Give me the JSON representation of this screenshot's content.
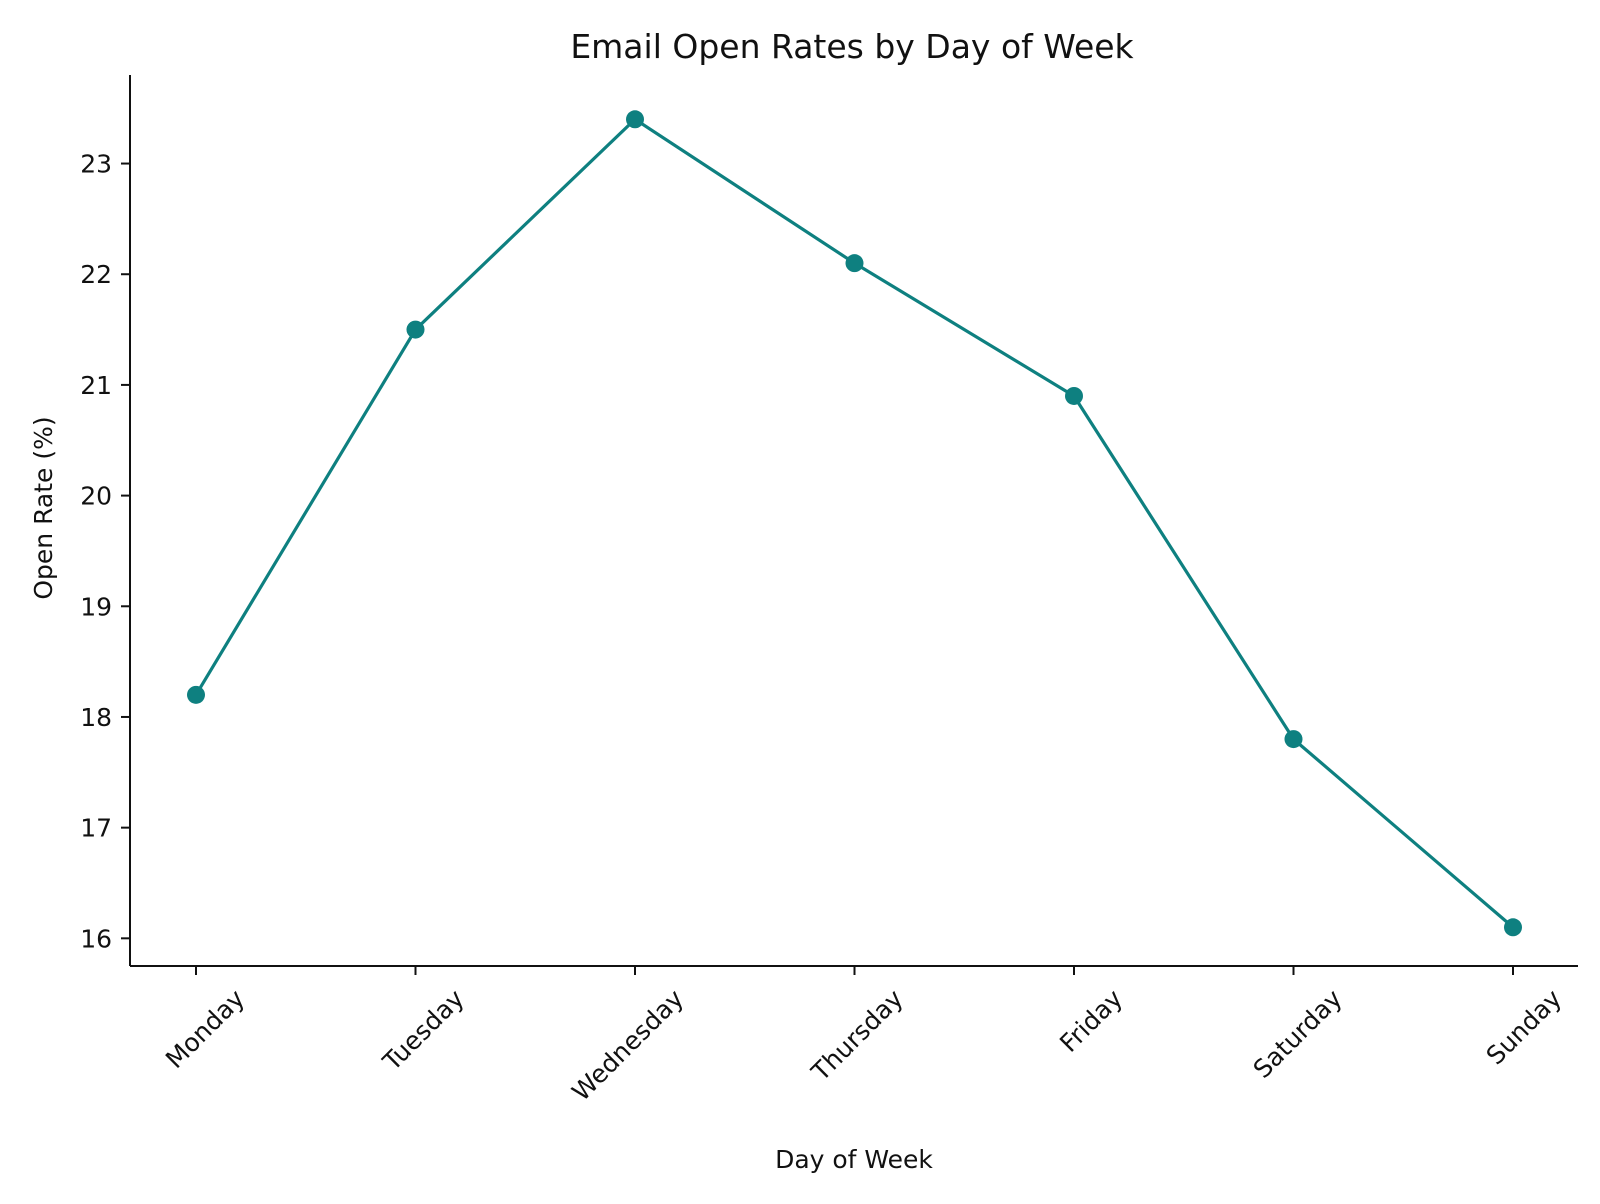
{
  "chart_data": {
    "type": "line",
    "title": "Email Open Rates by Day of Week",
    "xlabel": "Day of Week",
    "ylabel": "Open Rate (%)",
    "categories": [
      "Monday",
      "Tuesday",
      "Wednesday",
      "Thursday",
      "Friday",
      "Saturday",
      "Sunday"
    ],
    "series": [
      {
        "values": [
          18.2,
          21.5,
          23.4,
          22.1,
          20.9,
          17.8,
          16.1
        ],
        "color": "#0e8080",
        "marker": "circle"
      }
    ],
    "yticks": [
      "16",
      "17",
      "18",
      "19",
      "20",
      "21",
      "22",
      "23"
    ],
    "ylim": [
      15.75,
      23.8
    ],
    "grid": false,
    "legend": "none"
  }
}
